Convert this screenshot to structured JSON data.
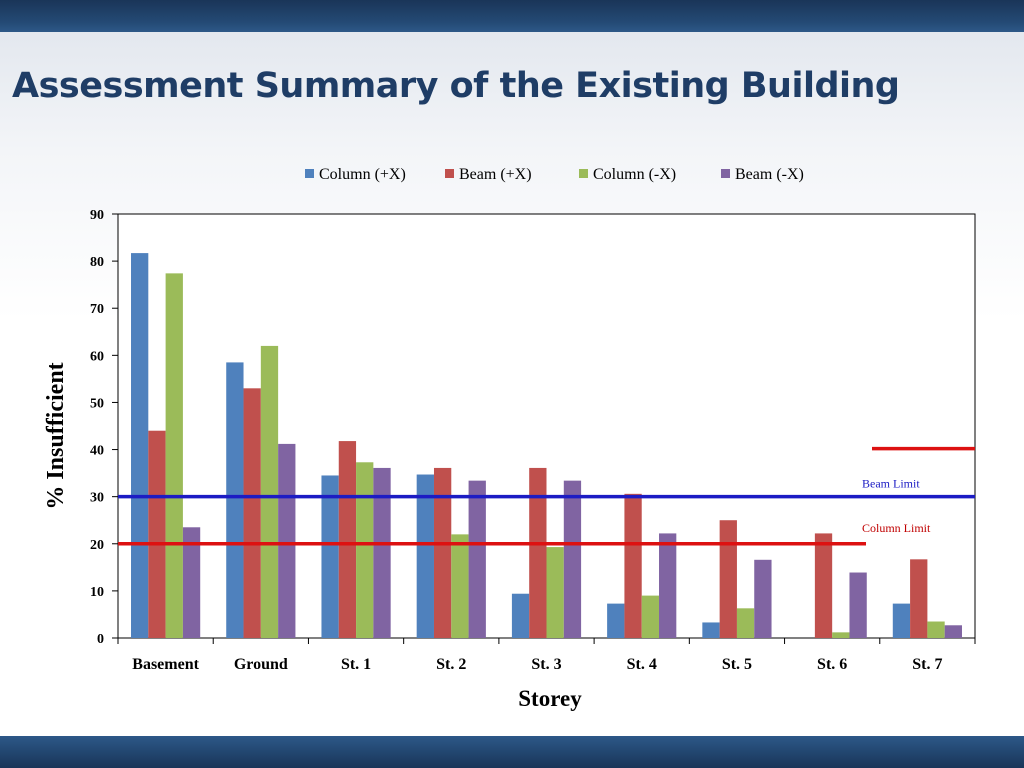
{
  "slide": {
    "title": "Assessment Summary of the Existing Building"
  },
  "chart_data": {
    "type": "bar",
    "title": "",
    "xlabel": "Storey",
    "ylabel": "% Insufficient",
    "ylim": [
      0,
      90
    ],
    "yticks": [
      0,
      10,
      20,
      30,
      40,
      50,
      60,
      70,
      80,
      90
    ],
    "categories": [
      "Basement",
      "Ground",
      "St. 1",
      "St. 2",
      "St. 3",
      "St. 4",
      "St. 5",
      "St. 6",
      "St. 7"
    ],
    "series": [
      {
        "name": "Column (+X)",
        "color": "#4f81bd",
        "values": [
          81.7,
          58.5,
          34.5,
          34.7,
          9.4,
          7.3,
          3.3,
          0,
          7.3
        ]
      },
      {
        "name": "Beam (+X)",
        "color": "#c0504d",
        "values": [
          44,
          53,
          41.8,
          36.1,
          36.1,
          30.6,
          25,
          22.2,
          16.7
        ]
      },
      {
        "name": "Column (-X)",
        "color": "#9bbb59",
        "values": [
          77.4,
          62,
          37.3,
          22,
          19.3,
          9,
          6.3,
          1.2,
          3.5
        ]
      },
      {
        "name": "Beam (-X)",
        "color": "#8064a2",
        "values": [
          23.5,
          41.2,
          36.1,
          33.4,
          33.4,
          22.2,
          16.6,
          13.9,
          2.7
        ]
      }
    ],
    "legend_position": "top",
    "grid": false,
    "reference_lines": [
      {
        "label": "Beam Limit",
        "value": 30,
        "color": "#1c1cc4"
      },
      {
        "label": "Column Limit",
        "value": 20,
        "color": "#dd1111"
      }
    ],
    "annotation_line": {
      "value": 40.2,
      "color": "#dd1111"
    }
  }
}
